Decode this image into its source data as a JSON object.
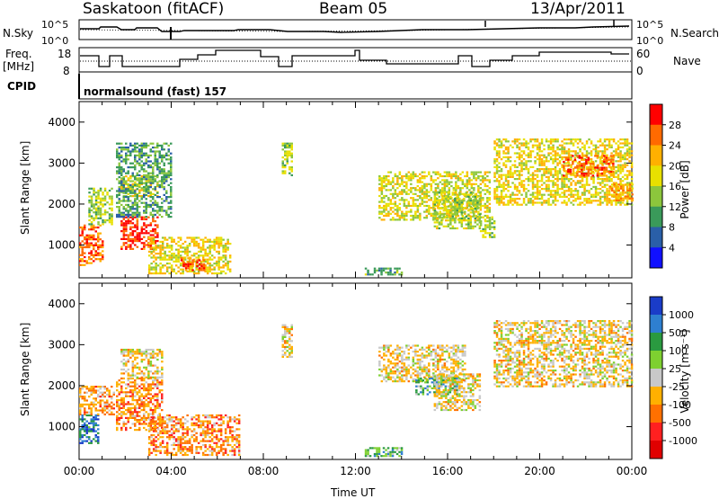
{
  "header": {
    "station": "Saskatoon (fitACF)",
    "beam": "Beam 05",
    "date": "13/Apr/2011"
  },
  "noise_panel": {
    "left_label": "N.Sky",
    "right_label": "N.Search",
    "tick_hi": "10^5",
    "tick_lo": "10^0"
  },
  "freq_panel": {
    "left_label_1": "Freq.",
    "left_label_2": "[MHz]",
    "right_label": "Nave",
    "left_ticks": [
      "18",
      "8"
    ],
    "right_ticks": [
      "60",
      "0"
    ]
  },
  "cpid": {
    "label": "CPID",
    "value": "normalsound (fast) 157"
  },
  "chart_data": [
    {
      "type": "heatmap",
      "name": "power",
      "ylabel": "Slant Range [km]",
      "yticks": [
        "4000",
        "3000",
        "2000",
        "1000"
      ],
      "ylim": [
        200,
        4500
      ],
      "colorbar": {
        "label": "Power [dB]",
        "ticks": [
          "28",
          "24",
          "20",
          "16",
          "12",
          "8",
          "4"
        ],
        "colors": [
          "#ff0000",
          "#ff6a00",
          "#ffb000",
          "#e8e000",
          "#8cc63c",
          "#3a9a5a",
          "#2a5fa8",
          "#1010ff"
        ]
      },
      "patches": [
        {
          "t0": 0.0,
          "t1": 1.0,
          "r0": 500,
          "r1": 1500,
          "level": 0.85
        },
        {
          "t0": 0.4,
          "t1": 1.4,
          "r0": 1500,
          "r1": 2400,
          "level": 0.45
        },
        {
          "t0": 1.8,
          "t1": 3.4,
          "r0": 900,
          "r1": 1700,
          "level": 0.95
        },
        {
          "t0": 1.8,
          "t1": 3.4,
          "r0": 2200,
          "r1": 2700,
          "level": 0.55
        },
        {
          "t0": 1.6,
          "t1": 4.0,
          "r0": 1700,
          "r1": 3500,
          "level": 0.3
        },
        {
          "t0": 3.0,
          "t1": 6.6,
          "r0": 300,
          "r1": 1200,
          "level": 0.6
        },
        {
          "t0": 4.4,
          "t1": 5.4,
          "r0": 400,
          "r1": 700,
          "level": 0.9
        },
        {
          "t0": 8.8,
          "t1": 9.2,
          "r0": 2700,
          "r1": 3500,
          "level": 0.45
        },
        {
          "t0": 12.4,
          "t1": 14.0,
          "r0": 300,
          "r1": 450,
          "level": 0.35
        },
        {
          "t0": 13.0,
          "t1": 17.8,
          "r0": 1600,
          "r1": 2800,
          "level": 0.55
        },
        {
          "t0": 15.4,
          "t1": 17.4,
          "r0": 1400,
          "r1": 2300,
          "level": 0.5
        },
        {
          "t0": 17.4,
          "t1": 18.0,
          "r0": 1200,
          "r1": 1700,
          "level": 0.5
        },
        {
          "t0": 18.0,
          "t1": 24.0,
          "r0": 2000,
          "r1": 3600,
          "level": 0.6
        },
        {
          "t0": 21.0,
          "t1": 23.2,
          "r0": 2700,
          "r1": 3200,
          "level": 0.85
        },
        {
          "t0": 23.0,
          "t1": 24.0,
          "r0": 2100,
          "r1": 2500,
          "level": 0.75
        }
      ]
    },
    {
      "type": "heatmap",
      "name": "velocity",
      "ylabel": "Slant Range [km]",
      "xlabel": "Time UT",
      "xticks": [
        "00:00",
        "04:00",
        "08:00",
        "12:00",
        "16:00",
        "20:00",
        "00:00"
      ],
      "yticks": [
        "4000",
        "3000",
        "2000",
        "1000"
      ],
      "ylim": [
        200,
        4500
      ],
      "colorbar": {
        "label": "Velocity [m s⁻¹]",
        "ticks": [
          "1000",
          "500",
          "100",
          "25",
          "-25",
          "-100",
          "-500",
          "-1000"
        ],
        "colors": [
          "#1a3cc8",
          "#2e7fd0",
          "#2a9a40",
          "#7ed030",
          "#c8c8c8",
          "#ffb000",
          "#ff7000",
          "#ff2020",
          "#e00000"
        ]
      },
      "patches": [
        {
          "t0": 0.0,
          "t1": 0.8,
          "r0": 600,
          "r1": 1300,
          "level": 0.85
        },
        {
          "t0": 0.0,
          "t1": 1.5,
          "r0": 1300,
          "r1": 2000,
          "level": 0.35
        },
        {
          "t0": 1.6,
          "t1": 3.6,
          "r0": 900,
          "r1": 2200,
          "level": 0.3
        },
        {
          "t0": 1.8,
          "t1": 3.6,
          "r0": 2200,
          "r1": 2900,
          "level": 0.45
        },
        {
          "t0": 3.0,
          "t1": 7.0,
          "r0": 300,
          "r1": 1300,
          "level": 0.3
        },
        {
          "t0": 8.8,
          "t1": 9.2,
          "r0": 2700,
          "r1": 3500,
          "level": 0.45
        },
        {
          "t0": 12.4,
          "t1": 14.0,
          "r0": 300,
          "r1": 500,
          "level": 0.7
        },
        {
          "t0": 13.0,
          "t1": 16.8,
          "r0": 2100,
          "r1": 3000,
          "level": 0.45
        },
        {
          "t0": 14.6,
          "t1": 16.4,
          "r0": 1800,
          "r1": 2200,
          "level": 0.72
        },
        {
          "t0": 15.4,
          "t1": 17.4,
          "r0": 1400,
          "r1": 2300,
          "level": 0.45
        },
        {
          "t0": 18.0,
          "t1": 24.0,
          "r0": 2000,
          "r1": 3600,
          "level": 0.45
        }
      ]
    }
  ]
}
